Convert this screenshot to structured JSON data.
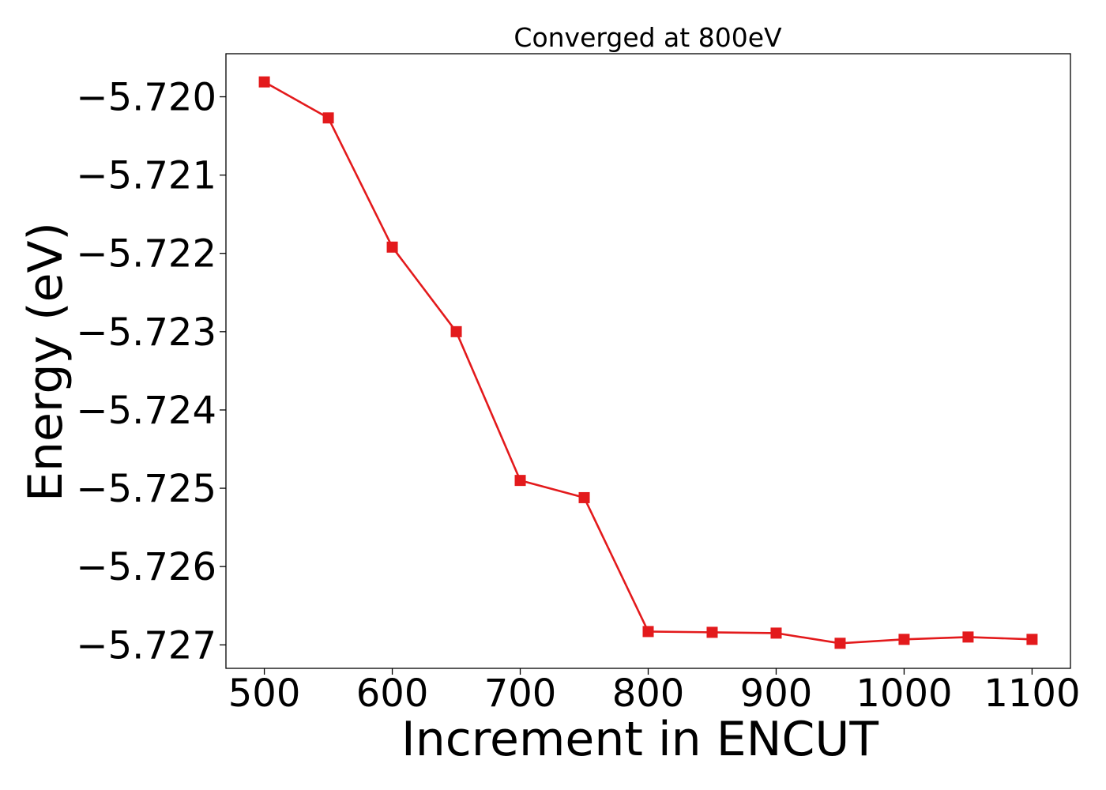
{
  "chart_data": {
    "type": "line",
    "title": "Converged at 800eV",
    "xlabel": "Increment in ENCUT",
    "ylabel": "Energy (eV)",
    "x": [
      500,
      550,
      600,
      650,
      700,
      750,
      800,
      850,
      900,
      950,
      1000,
      1050,
      1100
    ],
    "series": [
      {
        "values": [
          -5.71981,
          -5.72027,
          -5.72192,
          -5.723,
          -5.7249,
          -5.72512,
          -5.72683,
          -5.72684,
          -5.72685,
          -5.72698,
          -5.72693,
          -5.7269,
          -5.72693
        ],
        "color": "#e31a1c",
        "marker": "square"
      }
    ],
    "xlim": [
      470,
      1130
    ],
    "ylim": [
      -5.7273,
      -5.71945
    ],
    "xticks": [
      500,
      600,
      700,
      800,
      900,
      1000,
      1100
    ],
    "xtick_labels": [
      "500",
      "600",
      "700",
      "800",
      "900",
      "1000",
      "1100"
    ],
    "yticks": [
      -5.72,
      -5.721,
      -5.722,
      -5.723,
      -5.724,
      -5.725,
      -5.726,
      -5.727
    ],
    "ytick_labels": [
      "−5.720",
      "−5.721",
      "−5.722",
      "−5.723",
      "−5.724",
      "−5.725",
      "−5.726",
      "−5.727"
    ],
    "grid": false,
    "legend": false
  }
}
